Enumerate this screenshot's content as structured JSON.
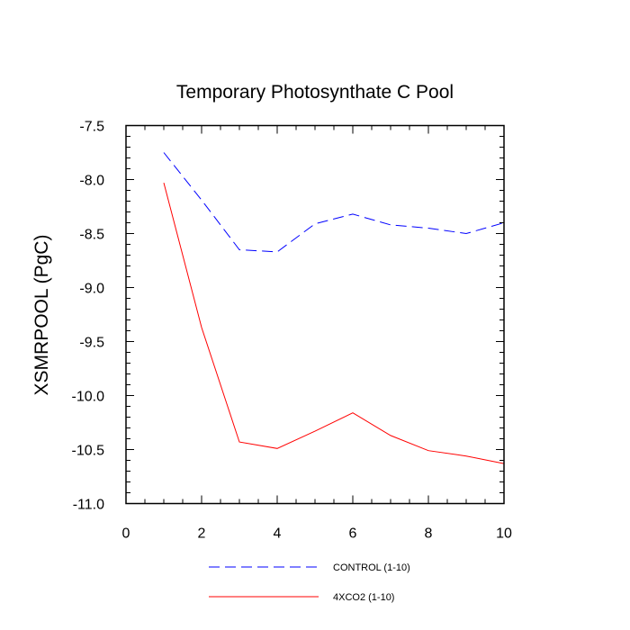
{
  "chart_data": {
    "type": "line",
    "title": "Temporary Photosynthate C Pool",
    "xlabel": "",
    "ylabel": "XSMRPOOL  (PgC)",
    "xlim": [
      0,
      10
    ],
    "ylim": [
      -11.0,
      -7.5
    ],
    "x_ticks": [
      0,
      2,
      4,
      6,
      8,
      10
    ],
    "x_tick_labels": [
      "0",
      "2",
      "4",
      "6",
      "8",
      "10"
    ],
    "y_ticks": [
      -7.5,
      -8.0,
      -8.5,
      -9.0,
      -9.5,
      -10.0,
      -10.5,
      -11.0
    ],
    "y_tick_labels": [
      "-7.5",
      "-8.0",
      "-8.5",
      "-9.0",
      "-9.5",
      "-10.0",
      "-10.5",
      "-11.0"
    ],
    "grid": false,
    "legend_position": "bottom",
    "series": [
      {
        "name": "CONTROL (1-10)",
        "color": "#0000ff",
        "style": "dashed",
        "x": [
          1,
          2,
          3,
          4,
          5,
          6,
          7,
          8,
          9,
          10
        ],
        "values": [
          -7.75,
          -8.19,
          -8.65,
          -8.67,
          -8.41,
          -8.32,
          -8.42,
          -8.45,
          -8.5,
          -8.4
        ]
      },
      {
        "name": "4XCO2 (1-10)",
        "color": "#ff0000",
        "style": "solid",
        "x": [
          1,
          2,
          3,
          4,
          5,
          6,
          7,
          8,
          9,
          10
        ],
        "values": [
          -8.03,
          -9.37,
          -10.43,
          -10.49,
          -10.33,
          -10.16,
          -10.37,
          -10.51,
          -10.56,
          -10.63
        ]
      }
    ]
  }
}
